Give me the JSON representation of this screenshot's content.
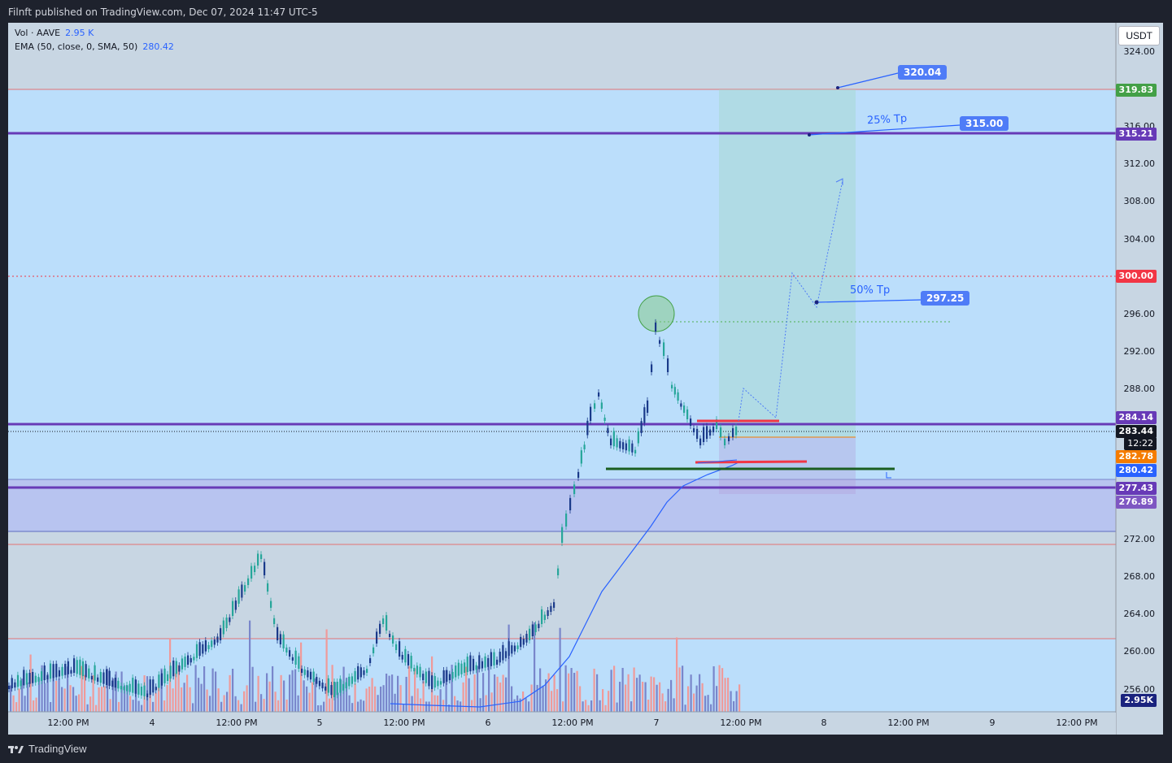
{
  "header": {
    "published": "Filnft published on TradingView.com, Dec 07, 2024 11:47 UTC-5"
  },
  "legend": {
    "vol_label": "Vol · AAVE",
    "vol_value": "2.95 K",
    "ema_label": "EMA (50, close, 0, SMA, 50)",
    "ema_value": "280.42"
  },
  "currency_button": "USDT",
  "y_axis": [
    "324.00",
    "316.00",
    "312.00",
    "308.00",
    "304.00",
    "300.00",
    "296.00",
    "292.00",
    "288.00",
    "284.00",
    "280.00",
    "276.00",
    "272.00",
    "268.00",
    "264.00",
    "260.00",
    "256.00"
  ],
  "x_axis": [
    "12:00 PM",
    "4",
    "12:00 PM",
    "5",
    "12:00 PM",
    "6",
    "12:00 PM",
    "7",
    "12:00 PM",
    "8",
    "12:00 PM",
    "9",
    "12:00 PM"
  ],
  "price_tags": {
    "t319": "319.83",
    "t315": "315.21",
    "t300": "300.00",
    "t284": "284.14",
    "t283": "283.44",
    "countdown": "12:22",
    "t282": "282.78",
    "t280": "280.42",
    "t277": "277.43",
    "t276": "276.89",
    "vol": "2.95K"
  },
  "colors": {
    "price_bg": "#2962ff",
    "purple": "#673ab7",
    "red": "#f23645",
    "orange": "#f57c00",
    "current": "#131722",
    "vol_tag": "#1a237e"
  },
  "annotations": {
    "a320": "320.04",
    "a315": "315.00",
    "a297": "297.25",
    "tp25": "25% Tp",
    "tp50": "50% Tp"
  },
  "footer": {
    "brand": "TradingView"
  }
}
